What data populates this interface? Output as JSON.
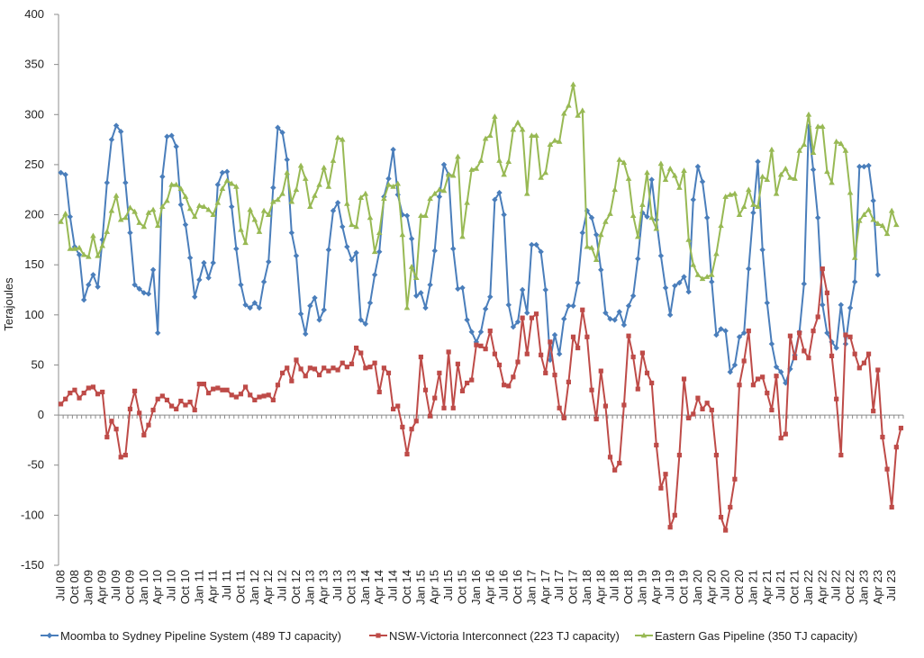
{
  "chart_data": {
    "type": "line",
    "ylabel": "Terajoules",
    "ylim": [
      -150,
      400
    ],
    "ytick_step": 50,
    "grid": false,
    "legend_position": "bottom",
    "x_start": "Jul 08",
    "x_end": "Sep 23",
    "x_tick_labels": [
      "Jul 08",
      "Oct 08",
      "Jan 09",
      "Apr 09",
      "Jul 09",
      "Oct 09",
      "Jan 10",
      "Apr 10",
      "Jul 10",
      "Oct 10",
      "Jan 11",
      "Apr 11",
      "Jul 11",
      "Oct 11",
      "Jan 12",
      "Apr 12",
      "Jul 12",
      "Oct 12",
      "Jan 13",
      "Apr 13",
      "Jul 13",
      "Oct 13",
      "Jan 14",
      "Apr 14",
      "Jul 14",
      "Oct 14",
      "Jan 15",
      "Apr 15",
      "Jul 15",
      "Oct 15",
      "Jan 16",
      "Apr 16",
      "Jul 16",
      "Oct 16",
      "Jan 17",
      "Apr 17",
      "Jul 17",
      "Oct 17",
      "Jan 18",
      "Apr 18",
      "Jul 18",
      "Oct 18",
      "Jan 19",
      "Apr 19",
      "Jul 19",
      "Oct 19",
      "Jan 20",
      "Apr 20",
      "Jul 20",
      "Oct 20",
      "Jan 21",
      "Apr 21",
      "Jul 21",
      "Oct 21",
      "Jan 22",
      "Apr 22",
      "Jul 22",
      "Oct 22",
      "Jan 23",
      "Apr 23",
      "Jul 23"
    ],
    "series": [
      {
        "name": "Moomba to Sydney Pipeline System (489 TJ capacity)",
        "color": "#4a7ebb",
        "marker": "diamond",
        "values": [
          242,
          240,
          198,
          168,
          160,
          115,
          130,
          140,
          128,
          175,
          232,
          275,
          289,
          283,
          232,
          182,
          130,
          126,
          122,
          121,
          145,
          82,
          238,
          278,
          279,
          268,
          210,
          190,
          157,
          118,
          135,
          152,
          137,
          152,
          230,
          242,
          243,
          208,
          166,
          130,
          110,
          107,
          112,
          107,
          133,
          153,
          227,
          287,
          282,
          255,
          182,
          159,
          101,
          81,
          109,
          117,
          95,
          105,
          165,
          204,
          212,
          188,
          168,
          155,
          162,
          95,
          91,
          112,
          140,
          163,
          218,
          236,
          265,
          220,
          200,
          199,
          176,
          119,
          122,
          107,
          130,
          164,
          218,
          250,
          240,
          166,
          126,
          127,
          95,
          83,
          73,
          83,
          106,
          118,
          215,
          222,
          200,
          110,
          88,
          93,
          125,
          102,
          170,
          170,
          163,
          125,
          55,
          80,
          61,
          96,
          109,
          109,
          132,
          182,
          204,
          197,
          180,
          145,
          102,
          96,
          95,
          103,
          90,
          109,
          119,
          156,
          202,
          198,
          235,
          195,
          159,
          127,
          100,
          129,
          132,
          138,
          123,
          215,
          248,
          233,
          197,
          133,
          80,
          86,
          84,
          43,
          50,
          78,
          82,
          146,
          202,
          253,
          165,
          112,
          71,
          48,
          43,
          32,
          46,
          60,
          83,
          131,
          288,
          245,
          197,
          110,
          82,
          73,
          67,
          110,
          71,
          107,
          133,
          248,
          248,
          249,
          214,
          140
        ]
      },
      {
        "name": "NSW-Victoria Interconnect (223 TJ capacity)",
        "color": "#be4b48",
        "marker": "square",
        "values": [
          11,
          16,
          22,
          25,
          17,
          22,
          27,
          28,
          21,
          23,
          -22,
          -6,
          -14,
          -42,
          -40,
          6,
          24,
          2,
          -20,
          -10,
          5,
          16,
          19,
          15,
          9,
          6,
          14,
          10,
          13,
          5,
          31,
          31,
          22,
          26,
          27,
          25,
          25,
          20,
          18,
          21,
          28,
          20,
          15,
          18,
          19,
          20,
          15,
          30,
          42,
          47,
          34,
          55,
          46,
          39,
          47,
          46,
          40,
          47,
          44,
          47,
          45,
          52,
          48,
          51,
          67,
          62,
          47,
          48,
          52,
          23,
          47,
          42,
          6,
          9,
          -12,
          -39,
          -14,
          -6,
          58,
          25,
          -1,
          17,
          42,
          7,
          63,
          7,
          51,
          24,
          32,
          35,
          70,
          69,
          66,
          84,
          61,
          50,
          30,
          29,
          38,
          53,
          97,
          61,
          97,
          101,
          60,
          42,
          73,
          40,
          7,
          -3,
          33,
          78,
          67,
          105,
          78,
          25,
          -4,
          44,
          9,
          -42,
          -55,
          -48,
          10,
          79,
          58,
          26,
          62,
          42,
          32,
          -30,
          -73,
          -59,
          -112,
          -100,
          -40,
          36,
          -3,
          1,
          17,
          6,
          12,
          5,
          -40,
          -102,
          -115,
          -92,
          -64,
          30,
          54,
          84,
          30,
          36,
          38,
          22,
          5,
          39,
          -23,
          -19,
          79,
          57,
          82,
          64,
          57,
          84,
          98,
          146,
          122,
          59,
          16,
          -40,
          80,
          78,
          61,
          47,
          52,
          61,
          4,
          45,
          -22,
          -54,
          -92,
          -32,
          -13
        ]
      },
      {
        "name": "Eastern Gas Pipeline (350 TJ capacity)",
        "color": "#98b954",
        "marker": "triangle",
        "values": [
          193,
          201,
          166,
          166,
          167,
          160,
          158,
          179,
          159,
          169,
          183,
          204,
          219,
          195,
          197,
          207,
          203,
          192,
          188,
          202,
          205,
          189,
          208,
          214,
          230,
          230,
          226,
          218,
          206,
          198,
          209,
          208,
          205,
          200,
          212,
          226,
          234,
          231,
          228,
          185,
          172,
          205,
          195,
          183,
          204,
          200,
          213,
          215,
          221,
          242,
          213,
          225,
          249,
          236,
          208,
          219,
          230,
          247,
          228,
          254,
          277,
          275,
          211,
          190,
          188,
          217,
          221,
          197,
          163,
          182,
          216,
          230,
          228,
          231,
          180,
          107,
          148,
          137,
          199,
          199,
          216,
          221,
          225,
          224,
          240,
          239,
          258,
          178,
          212,
          245,
          246,
          254,
          276,
          279,
          298,
          254,
          240,
          253,
          285,
          292,
          285,
          221,
          279,
          279,
          237,
          242,
          270,
          274,
          273,
          301,
          309,
          330,
          299,
          304,
          168,
          167,
          155,
          180,
          193,
          201,
          225,
          255,
          252,
          236,
          199,
          178,
          210,
          242,
          197,
          186,
          251,
          235,
          246,
          239,
          227,
          244,
          175,
          150,
          140,
          136,
          138,
          140,
          161,
          189,
          218,
          220,
          221,
          200,
          208,
          225,
          210,
          208,
          238,
          235,
          265,
          221,
          240,
          246,
          237,
          236,
          264,
          270,
          300,
          262,
          288,
          288,
          243,
          232,
          273,
          271,
          264,
          222,
          157,
          194,
          200,
          205,
          195,
          191,
          189,
          181,
          204,
          190
        ]
      }
    ]
  }
}
